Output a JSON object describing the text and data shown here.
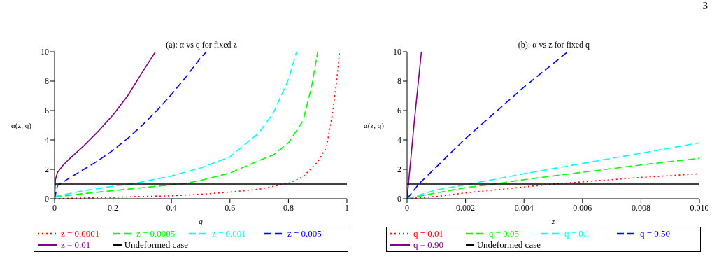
{
  "chart_data": [
    {
      "type": "line",
      "title": "(a): α vs q for fixed z",
      "xlabel": "q",
      "ylabel": "α(z, q)",
      "xlim": [
        0,
        1
      ],
      "ylim": [
        0,
        10
      ],
      "xticks": [
        0,
        0.2,
        0.4,
        0.6,
        0.8,
        1
      ],
      "yticks": [
        0,
        2,
        4,
        6,
        8,
        10
      ],
      "legend": "bottom",
      "marker": "none",
      "series": [
        {
          "name": "z = 0.0001",
          "color": "#ff0000",
          "line_style": "dotted",
          "x": [
            0,
            0.2,
            0.4,
            0.5,
            0.6,
            0.7,
            0.8,
            0.85,
            0.9,
            0.93,
            0.95,
            0.965,
            0.975
          ],
          "values": [
            0,
            0.1,
            0.2,
            0.3,
            0.45,
            0.65,
            1.05,
            1.5,
            2.5,
            3.5,
            5.7,
            8,
            10
          ]
        },
        {
          "name": "z = 0.0005",
          "color": "#00ff00",
          "line_style": "dashed",
          "x": [
            0,
            0.1,
            0.2,
            0.3,
            0.4,
            0.45,
            0.5,
            0.6,
            0.7,
            0.75,
            0.8,
            0.85,
            0.88,
            0.9
          ],
          "values": [
            0.1,
            0.35,
            0.55,
            0.75,
            0.95,
            1.05,
            1.25,
            1.75,
            2.6,
            3,
            3.8,
            5.3,
            7.7,
            10
          ]
        },
        {
          "name": "z = 0.001",
          "color": "#00ffff",
          "line_style": "dashed",
          "x": [
            0,
            0.1,
            0.2,
            0.26,
            0.3,
            0.4,
            0.5,
            0.6,
            0.7,
            0.75,
            0.8,
            0.828
          ],
          "values": [
            0.15,
            0.55,
            0.85,
            1,
            1.15,
            1.55,
            2.1,
            2.85,
            4.5,
            5.9,
            8.1,
            10
          ]
        },
        {
          "name": "z = 0.005",
          "color": "#0000ff",
          "line_style": "dashed",
          "x": [
            0,
            0.01,
            0.05,
            0.1,
            0.15,
            0.2,
            0.25,
            0.3,
            0.35,
            0.4,
            0.45,
            0.5,
            0.52
          ],
          "values": [
            0,
            0.9,
            1.4,
            2,
            2.6,
            3.3,
            4.1,
            5,
            6,
            7.1,
            8.3,
            9.6,
            10
          ]
        },
        {
          "name": "z = 0.01",
          "color": "#800080",
          "line_style": "solid",
          "x": [
            0,
            0.003,
            0.01,
            0.03,
            0.05,
            0.1,
            0.15,
            0.2,
            0.25,
            0.3,
            0.345
          ],
          "values": [
            0,
            1.3,
            1.8,
            2.3,
            2.7,
            3.6,
            4.6,
            5.7,
            7,
            8.6,
            10
          ]
        },
        {
          "name": "Undeformed case",
          "color": "#000000",
          "line_style": "solid",
          "x": [
            0,
            1
          ],
          "values": [
            1,
            1
          ]
        }
      ]
    },
    {
      "type": "line",
      "title": "(b): α vs z for fixed q",
      "xlabel": "z",
      "ylabel": "α(z, q)",
      "xlim": [
        0,
        0.01
      ],
      "ylim": [
        0,
        10
      ],
      "xticks": [
        0,
        0.002,
        0.004,
        0.006,
        0.008,
        {
          "value": 0.01,
          "label": "0.010"
        }
      ],
      "yticks": [
        0,
        2,
        4,
        6,
        8,
        10
      ],
      "legend": "bottom",
      "marker": "none",
      "annotations": [
        "3"
      ],
      "series": [
        {
          "name": "q = 0.01",
          "color": "#ff0000",
          "line_style": "dotted",
          "x": [
            0,
            0.001,
            0.002,
            0.004,
            0.005,
            0.006,
            0.008,
            0.01
          ],
          "values": [
            0,
            0.15,
            0.4,
            0.8,
            1,
            1.15,
            1.45,
            1.7
          ]
        },
        {
          "name": "q = 0.05",
          "color": "#00ff00",
          "line_style": "dashed",
          "x": [
            0,
            0.001,
            0.002,
            0.003,
            0.004,
            0.006,
            0.008,
            0.01
          ],
          "values": [
            0,
            0.4,
            0.75,
            1,
            1.3,
            1.8,
            2.3,
            2.75
          ]
        },
        {
          "name": "q = 0.1",
          "color": "#00ffff",
          "line_style": "dashed",
          "x": [
            0,
            0.001,
            0.002,
            0.004,
            0.006,
            0.008,
            0.01
          ],
          "values": [
            0,
            0.6,
            0.95,
            1.7,
            2.4,
            3.1,
            3.8
          ]
        },
        {
          "name": "q = 0.50",
          "color": "#0000ff",
          "line_style": "dashed",
          "x": [
            0,
            0.0004,
            0.002,
            0.004,
            0.0055
          ],
          "values": [
            0,
            1,
            4.1,
            7.6,
            10
          ]
        },
        {
          "name": "q = 0.90",
          "color": "#800080",
          "line_style": "solid",
          "x": [
            0,
            0.00025,
            0.00049
          ],
          "values": [
            0,
            5.3,
            10
          ]
        },
        {
          "name": "Undeformed case",
          "color": "#000000",
          "line_style": "solid",
          "x": [
            0,
            0.01
          ],
          "values": [
            1,
            1
          ]
        }
      ]
    }
  ]
}
